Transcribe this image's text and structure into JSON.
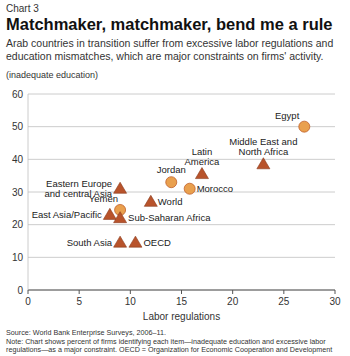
{
  "chart_data": {
    "type": "scatter",
    "chart_number": "Chart 3",
    "title": "Matchmaker, matchmaker, bend me a rule",
    "subtitle": "Arab countries in transition suffer from excessive labor regulations and education mismatches, which are major constraints on firms' activity.",
    "y_label": "(inadequate education)",
    "x_label": "Labor regulations",
    "source": "Source: World Bank Enterprise Surveys, 2006–11.",
    "note": "Note: Chart shows percent of firms identifying each item—inadequate education and excessive labor regulations—as a major constraint. OECD = Organization for Economic Cooperation and Development member countries.",
    "xlim": [
      0,
      30
    ],
    "xticks": [
      0,
      5,
      10,
      15,
      20,
      25,
      30
    ],
    "ylim": [
      0,
      60
    ],
    "yticks": [
      0,
      10,
      20,
      30,
      40,
      50,
      60
    ],
    "grid": true,
    "series": [
      {
        "marker": "circle",
        "color": "#e9a04e",
        "labels": [
          "Egypt",
          "Jordan",
          "Morocco",
          "Yemen"
        ],
        "x": [
          27,
          14,
          15.8,
          9
        ],
        "values": [
          50,
          33,
          31,
          24.5
        ]
      },
      {
        "marker": "triangle",
        "color": "#b8532b",
        "labels": [
          "Middle East and North Africa",
          "Latin America",
          "World",
          "Eastern Europe and central Asia",
          "East Asia/Pacific",
          "Sub-Saharan Africa",
          "South Asia",
          "OECD"
        ],
        "x": [
          23,
          17,
          12,
          9,
          8,
          9,
          9,
          10.5
        ],
        "values": [
          38.5,
          35.5,
          27,
          31,
          23,
          22,
          14.5,
          14.5
        ]
      }
    ]
  }
}
